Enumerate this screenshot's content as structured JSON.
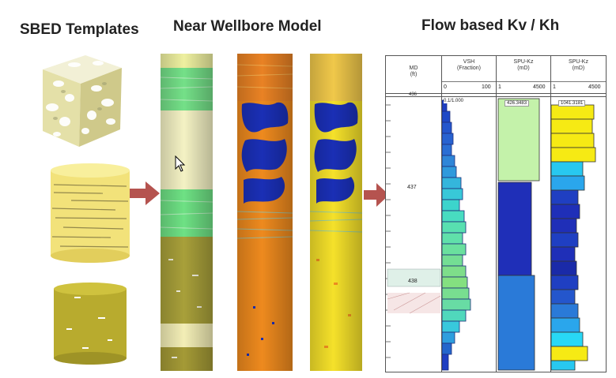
{
  "titles": {
    "sbed": "SBED Templates",
    "wellbore": "Near Wellbore Model",
    "flow": "Flow based Kv / Kh"
  },
  "icons": [
    "cube-icon",
    "laminated-cylinder-icon",
    "olive-cylinder-icon",
    "arrow-right-icon",
    "cursor-icon"
  ],
  "colors": {
    "arrow": "#b5534f",
    "green_band": "#6fe08a",
    "cream": "#f4f0b8",
    "olive": "#a89b2a",
    "orange": "#ee8a1e",
    "blue_patch": "#1a2fb5"
  },
  "log": {
    "headers": [
      {
        "name": "MD",
        "unit": "(ft)"
      },
      {
        "name": "VSH",
        "unit": "(Fraction)"
      },
      {
        "name": "SPU-Kz",
        "unit": "(mD)"
      },
      {
        "name": "SPU-Kz",
        "unit": "(mD)"
      }
    ],
    "scales": [
      {
        "min": "0",
        "max": "100"
      },
      {
        "min": "1",
        "max": "4500"
      },
      {
        "min": "1",
        "max": "4500"
      }
    ],
    "depth_labels": [
      "436",
      "437",
      "438"
    ],
    "readouts": [
      "0.1/1.000",
      "426.3483",
      "1041.3181"
    ]
  }
}
